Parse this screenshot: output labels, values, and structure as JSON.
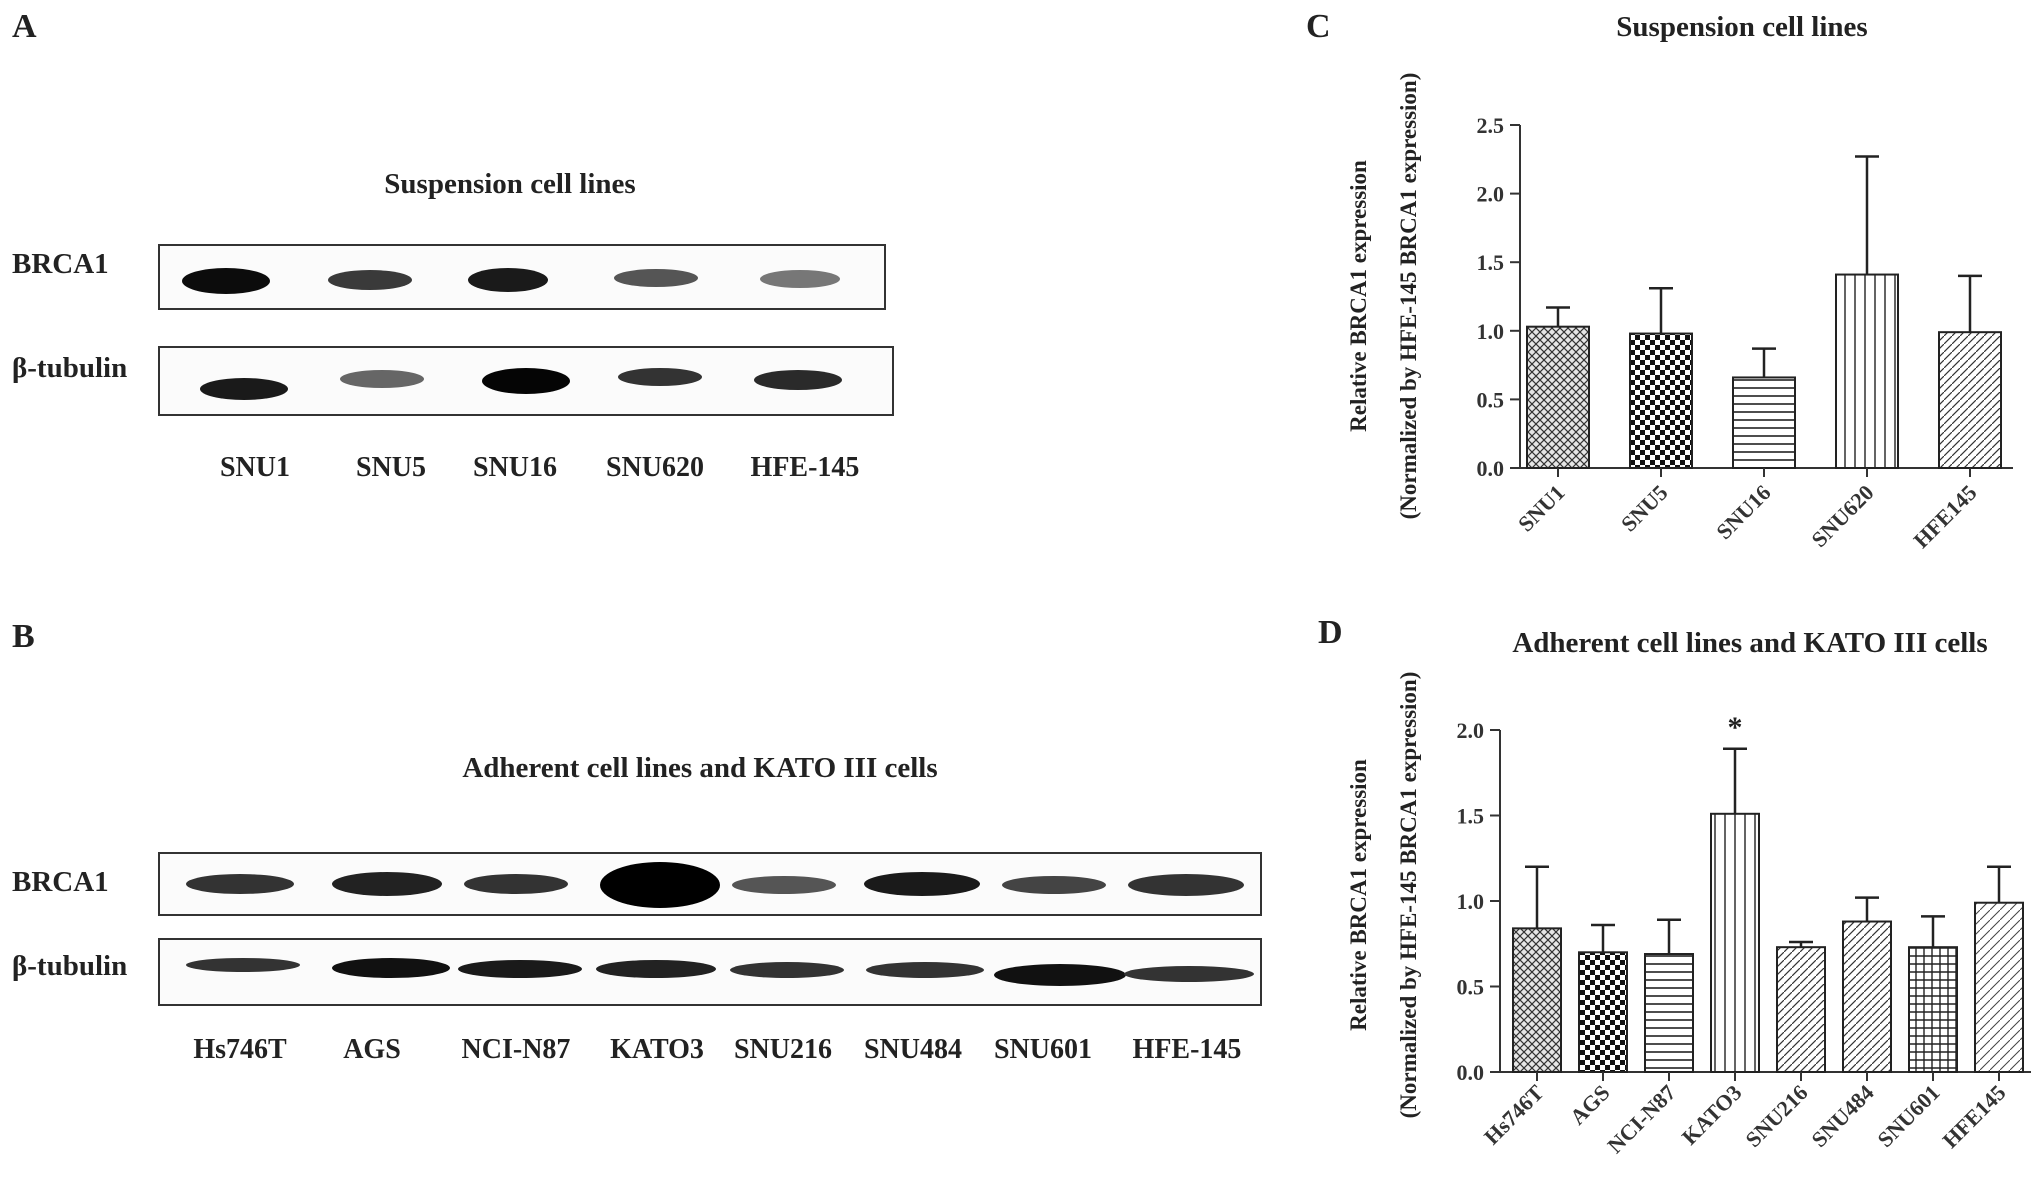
{
  "panels": {
    "A": {
      "letter": "A",
      "title": "Suspension cell lines",
      "rows": [
        "BRCA1",
        "β-tubulin"
      ],
      "lanes": [
        "SNU1",
        "SNU5",
        "SNU16",
        "SNU620",
        "HFE-145"
      ]
    },
    "B": {
      "letter": "B",
      "title": "Adherent cell lines and KATO III cells",
      "rows": [
        "BRCA1",
        "β-tubulin"
      ],
      "lanes": [
        "Hs746T",
        "AGS",
        "NCI-N87",
        "KATO3",
        "SNU216",
        "SNU484",
        "SNU601",
        "HFE-145"
      ]
    },
    "C": {
      "letter": "C"
    },
    "D": {
      "letter": "D"
    }
  },
  "chart_data": [
    {
      "panel": "C",
      "type": "bar",
      "title": "Suspension cell lines",
      "ylabel_line1": "Relative BRCA1 expression",
      "ylabel_line2": "(Normalized by HFE-145 BRCA1 expression)",
      "categories": [
        "SNU1",
        "SNU5",
        "SNU16",
        "SNU620",
        "HFE145"
      ],
      "values": [
        1.03,
        0.98,
        0.66,
        1.41,
        0.99
      ],
      "errors": [
        0.14,
        0.33,
        0.21,
        0.86,
        0.41
      ],
      "patterns": [
        "crosshatch",
        "checker",
        "hlines",
        "vlines",
        "diag"
      ],
      "ylim": [
        0,
        2.5
      ],
      "yticks": [
        "0.0",
        "0.5",
        "1.0",
        "1.5",
        "2.0",
        "2.5"
      ],
      "annotations": []
    },
    {
      "panel": "D",
      "type": "bar",
      "title": "Adherent cell lines and KATO III cells",
      "ylabel_line1": "Relative BRCA1 expression",
      "ylabel_line2": "(Normalized by HFE-145 BRCA1 expression)",
      "categories": [
        "Hs746T",
        "AGS",
        "NCI-N87",
        "KATO3",
        "SNU216",
        "SNU484",
        "SNU601",
        "HFE145"
      ],
      "values": [
        0.84,
        0.7,
        0.69,
        1.51,
        0.73,
        0.88,
        0.73,
        0.99
      ],
      "errors": [
        0.36,
        0.16,
        0.2,
        0.38,
        0.03,
        0.14,
        0.18,
        0.21
      ],
      "patterns": [
        "crosshatch",
        "checker",
        "hlines",
        "vlines",
        "diag",
        "diag",
        "grid",
        "diag2"
      ],
      "ylim": [
        0,
        2.0
      ],
      "yticks": [
        "0.0",
        "0.5",
        "1.0",
        "1.5",
        "2.0"
      ],
      "annotations": [
        {
          "category": "KATO3",
          "text": "*"
        }
      ]
    }
  ]
}
